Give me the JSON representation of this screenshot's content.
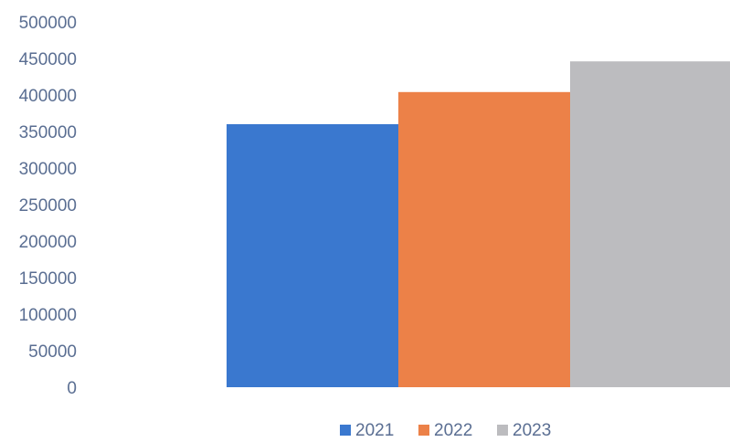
{
  "chart_data": {
    "type": "bar",
    "categories": [
      ""
    ],
    "series": [
      {
        "name": "2021",
        "values": [
          360000
        ],
        "color": "#3a78cf"
      },
      {
        "name": "2022",
        "values": [
          404000
        ],
        "color": "#ec8148"
      },
      {
        "name": "2023",
        "values": [
          446000
        ],
        "color": "#bcbcbf"
      }
    ],
    "title": "",
    "xlabel": "",
    "ylabel": "",
    "ylim": [
      0,
      500000
    ],
    "yticks": [
      "0",
      "50000",
      "100000",
      "150000",
      "200000",
      "250000",
      "300000",
      "350000",
      "400000",
      "450000",
      "500000"
    ],
    "grid": false,
    "legend": "bottom"
  }
}
